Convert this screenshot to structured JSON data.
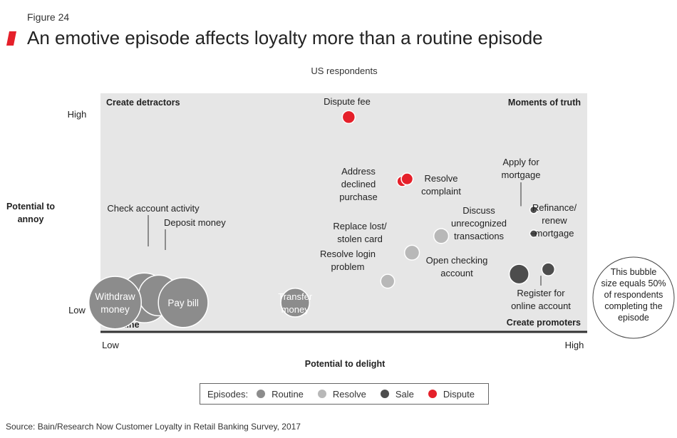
{
  "figure_label": "Figure 24",
  "title": "An emotive episode affects loyalty more than a routine episode",
  "subtitle": "US respondents",
  "source": "Source: Bain/Research Now Customer Loyalty in Retail Banking Survey, 2017",
  "colors": {
    "routine": "#8c8c8c",
    "resolve": "#b8b8b8",
    "sale": "#4d4d4d",
    "dispute": "#e5202a",
    "plot_background": "#e6e6e6",
    "accent": "#e5202a"
  },
  "legend": {
    "label": "Episodes:",
    "items": [
      {
        "name": "Routine",
        "color": "#8c8c8c"
      },
      {
        "name": "Resolve",
        "color": "#b8b8b8"
      },
      {
        "name": "Sale",
        "color": "#4d4d4d"
      },
      {
        "name": "Dispute",
        "color": "#e5202a"
      }
    ]
  },
  "chart_data": {
    "type": "scatter",
    "subtype": "bubble",
    "title": "An emotive episode affects loyalty more than a routine episode",
    "subtitle": "US respondents",
    "xlabel": "Potential to delight",
    "ylabel": "Potential to annoy",
    "x_ticks": [
      "Low",
      "High"
    ],
    "y_ticks": [
      "High",
      "Low"
    ],
    "xlim": [
      0,
      100
    ],
    "ylim": [
      0,
      100
    ],
    "grid": false,
    "quadrant_labels": {
      "top_left": "Create detractors",
      "top_right": "Moments of truth",
      "bottom_left": "Routine",
      "bottom_right": "Create promoters"
    },
    "size_reference": {
      "text": "This bubble size equals 50% of respondents completing the episode",
      "value": 50
    },
    "series": [
      {
        "name": "Routine",
        "points": [
          {
            "label": "Check account activity",
            "x": 9,
            "y": 14,
            "size": 45
          },
          {
            "label": "Deposit money",
            "x": 12,
            "y": 15,
            "size": 30
          },
          {
            "label": "Withdraw money",
            "x": 3,
            "y": 12,
            "size": 50
          },
          {
            "label": "Pay bill",
            "x": 17,
            "y": 12,
            "size": 45
          },
          {
            "label": "Transfer money",
            "x": 40,
            "y": 12,
            "size": 15
          }
        ]
      },
      {
        "name": "Resolve",
        "points": [
          {
            "label": "Replace lost/ stolen card",
            "x": 64,
            "y": 33,
            "size": 4
          },
          {
            "label": "Resolve login problem",
            "x": 59,
            "y": 21,
            "size": 3.5
          },
          {
            "label": "Discuss unrecognized transactions",
            "x": 70,
            "y": 40,
            "size": 4
          }
        ]
      },
      {
        "name": "Sale",
        "points": [
          {
            "label": "Apply for mortgage",
            "x": 89,
            "y": 51,
            "size": 1
          },
          {
            "label": "Refinance/ renew mortgage",
            "x": 89,
            "y": 41,
            "size": 1
          },
          {
            "label": "Open checking account",
            "x": 86,
            "y": 24,
            "size": 7
          },
          {
            "label": "Register for online account",
            "x": 92,
            "y": 26,
            "size": 3
          }
        ]
      },
      {
        "name": "Dispute",
        "points": [
          {
            "label": "Dispute fee",
            "x": 51,
            "y": 90,
            "size": 3
          },
          {
            "label": "Address declined purchase",
            "x": 62,
            "y": 63,
            "size": 2
          },
          {
            "label": "Resolve complaint",
            "x": 63,
            "y": 64,
            "size": 2.5
          }
        ]
      }
    ]
  },
  "display_labels": {
    "check_account_activity": "Check account activity",
    "deposit_money": "Deposit money",
    "withdraw_money": [
      "Withdraw",
      "money"
    ],
    "pay_bill": "Pay bill",
    "transfer_money": [
      "Transfer",
      "money"
    ],
    "replace_lost": [
      "Replace lost/",
      "stolen card"
    ],
    "resolve_login": [
      "Resolve login",
      "problem"
    ],
    "discuss_unrecognized": [
      "Discuss",
      "unrecognized",
      "transactions"
    ],
    "apply_mortgage": [
      "Apply for",
      "mortgage"
    ],
    "refinance": [
      "Refinance/",
      "renew",
      "mortgage"
    ],
    "open_checking": [
      "Open checking",
      "account"
    ],
    "register_online": [
      "Register for",
      "online account"
    ],
    "dispute_fee": "Dispute fee",
    "address_declined": [
      "Address",
      "declined",
      "purchase"
    ],
    "resolve_complaint": [
      "Resolve",
      "complaint"
    ],
    "y_axis_title": [
      "Potential to",
      "annoy"
    ],
    "size_note": [
      "This bubble",
      "size equals 50%",
      "of respondents",
      "completing the",
      "episode"
    ]
  }
}
